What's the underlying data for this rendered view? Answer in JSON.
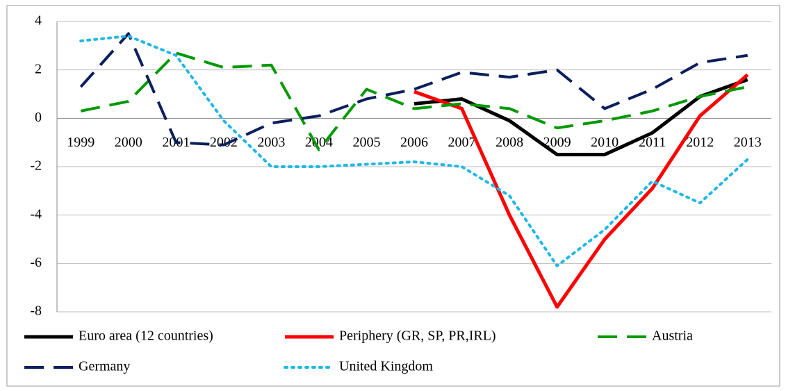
{
  "chart_data": {
    "type": "line",
    "categories": [
      "1999",
      "2000",
      "2001",
      "2002",
      "2003",
      "2004",
      "2005",
      "2006",
      "2007",
      "2008",
      "2009",
      "2010",
      "2011",
      "2012",
      "2013"
    ],
    "series": [
      {
        "name": "Euro area (12 countries)",
        "color": "#000000",
        "style": "solid",
        "values": [
          null,
          null,
          null,
          null,
          null,
          null,
          null,
          0.6,
          0.8,
          -0.1,
          -1.5,
          -1.5,
          -0.6,
          0.9,
          1.6
        ]
      },
      {
        "name": "Periphery (GR, SP, PR,IRL)",
        "color": "#ff0000",
        "style": "solid",
        "values": [
          null,
          null,
          null,
          null,
          null,
          null,
          null,
          1.1,
          0.4,
          -4.0,
          -7.8,
          -5.0,
          -2.9,
          0.1,
          1.8
        ]
      },
      {
        "name": "Austria",
        "color": "#009900",
        "style": "dashed",
        "values": [
          0.3,
          0.7,
          2.7,
          2.1,
          2.2,
          -1.3,
          1.2,
          0.4,
          0.6,
          0.4,
          -0.4,
          -0.1,
          0.3,
          0.9,
          1.3
        ]
      },
      {
        "name": "Germany",
        "color": "#0a1f5c",
        "style": "dashed",
        "values": [
          1.3,
          3.5,
          -1.0,
          -1.1,
          -0.2,
          0.1,
          0.8,
          1.2,
          1.9,
          1.7,
          2.0,
          0.4,
          1.2,
          2.3,
          2.6
        ]
      },
      {
        "name": "United Kingdom",
        "color": "#1fb8e6",
        "style": "dotted",
        "values": [
          3.2,
          3.4,
          2.6,
          -0.1,
          -2.0,
          -2.0,
          -1.9,
          -1.8,
          -2.0,
          -3.2,
          -6.1,
          -4.6,
          -2.6,
          -3.5,
          -1.7
        ]
      }
    ],
    "ylim": [
      -8,
      4
    ],
    "yticks": [
      4,
      2,
      0,
      -2,
      -4,
      -6,
      -8
    ],
    "grid": true,
    "legend": "bottom"
  }
}
